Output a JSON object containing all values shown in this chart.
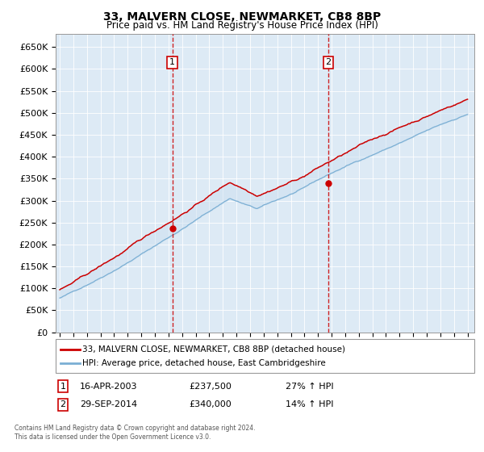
{
  "title": "33, MALVERN CLOSE, NEWMARKET, CB8 8BP",
  "subtitle": "Price paid vs. HM Land Registry's House Price Index (HPI)",
  "ylim": [
    0,
    680000
  ],
  "yticks": [
    0,
    50000,
    100000,
    150000,
    200000,
    250000,
    300000,
    350000,
    400000,
    450000,
    500000,
    550000,
    600000,
    650000
  ],
  "ytick_labels": [
    "£0",
    "£50K",
    "£100K",
    "£150K",
    "£200K",
    "£250K",
    "£300K",
    "£350K",
    "£400K",
    "£450K",
    "£500K",
    "£550K",
    "£600K",
    "£650K"
  ],
  "xlim_start": 1994.7,
  "xlim_end": 2025.5,
  "xtick_years": [
    1995,
    1996,
    1997,
    1998,
    1999,
    2000,
    2001,
    2002,
    2003,
    2004,
    2005,
    2006,
    2007,
    2008,
    2009,
    2010,
    2011,
    2012,
    2013,
    2014,
    2015,
    2016,
    2017,
    2018,
    2019,
    2020,
    2021,
    2022,
    2023,
    2024,
    2025
  ],
  "sale1_x": 2003.29,
  "sale1_y": 237500,
  "sale2_x": 2014.75,
  "sale2_y": 340000,
  "legend_line1": "33, MALVERN CLOSE, NEWMARKET, CB8 8BP (detached house)",
  "legend_line2": "HPI: Average price, detached house, East Cambridgeshire",
  "footer": "Contains HM Land Registry data © Crown copyright and database right 2024.\nThis data is licensed under the Open Government Licence v3.0.",
  "line_color_red": "#cc0000",
  "line_color_blue": "#7bafd4",
  "fill_color": "#cce0f0",
  "background_color": "#ddeaf5",
  "dashed_color": "#cc0000",
  "ann1_date": "16-APR-2003",
  "ann1_price": "£237,500",
  "ann1_hpi": "27% ↑ HPI",
  "ann2_date": "29-SEP-2014",
  "ann2_price": "£340,000",
  "ann2_hpi": "14% ↑ HPI"
}
